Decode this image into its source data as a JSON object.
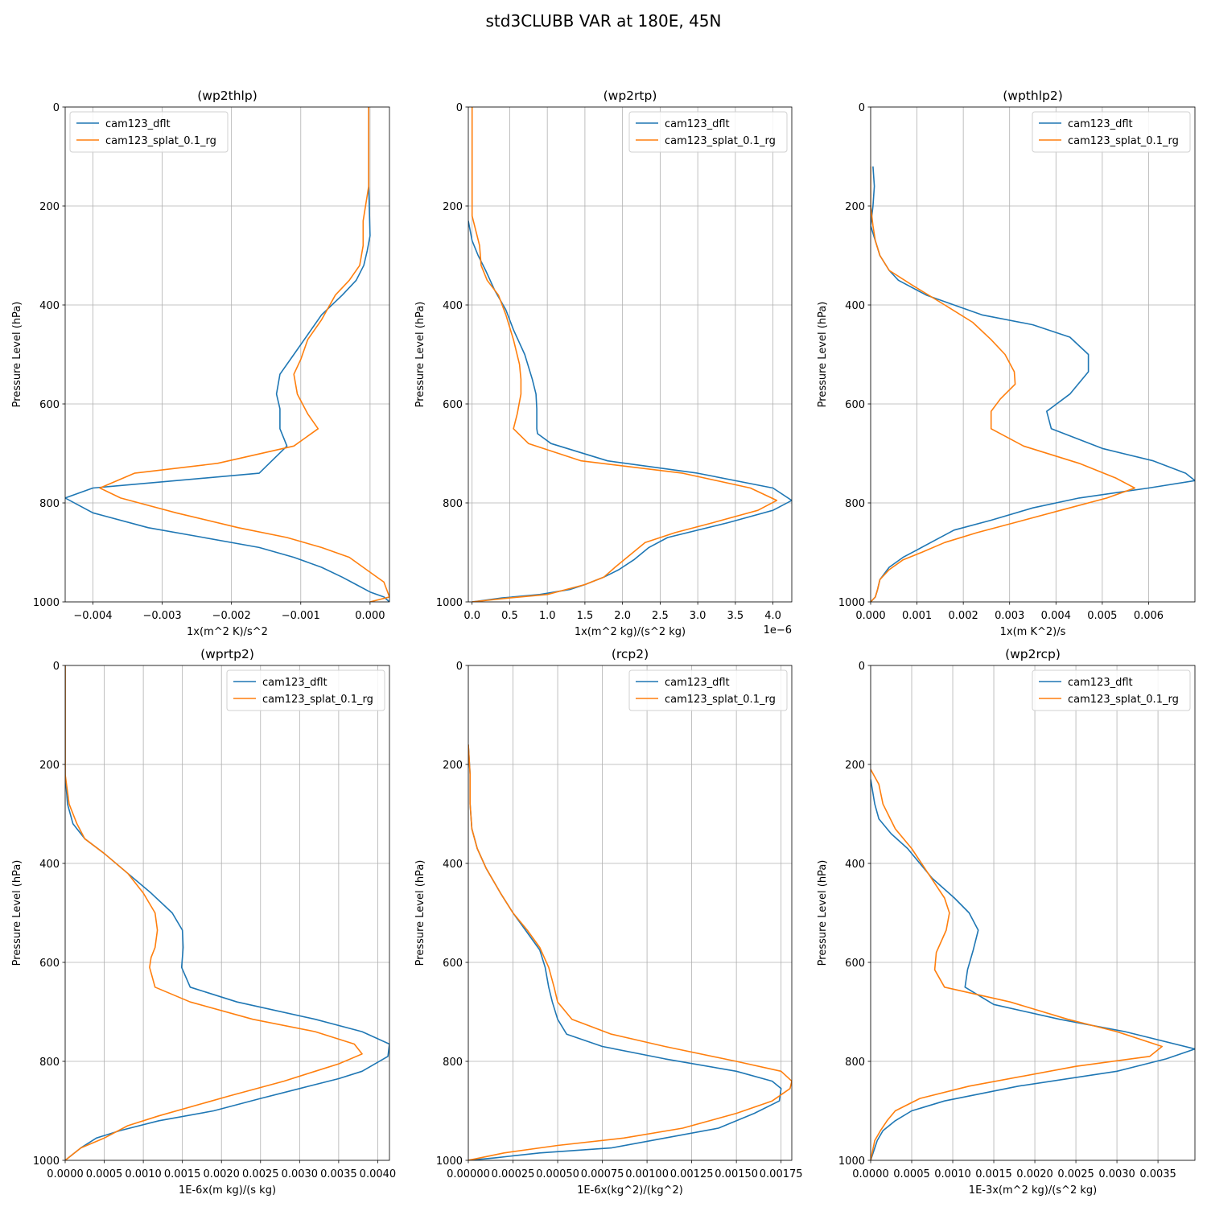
{
  "suptitle": "std3CLUBB VAR at 180E, 45N",
  "colors": {
    "cam123_dflt": "#1f77b4",
    "cam123_splat_0.1_rg": "#ff7f0e"
  },
  "chart_data": [
    {
      "type": "line",
      "title": "(wp2thlp)",
      "xlabel": "1x(m^2 K)/s^2",
      "ylabel": "Pressure Level (hPa)",
      "xlim": [
        -0.0044,
        0.00028
      ],
      "ylim": [
        1000,
        0
      ],
      "offset_text": "",
      "xticks": [
        -0.004,
        -0.003,
        -0.002,
        -0.001,
        0.0
      ],
      "xtick_labels": [
        "−0.004",
        "−0.003",
        "−0.002",
        "−0.001",
        "0.000"
      ],
      "yticks": [
        0,
        200,
        400,
        600,
        800,
        1000
      ],
      "ytick_labels": [
        "0",
        "200",
        "400",
        "600",
        "800",
        "1000"
      ],
      "legend_loc": "upper-left",
      "grid": true,
      "series": [
        {
          "name": "cam123_dflt",
          "x": [
            -2e-05,
            -2e-05,
            -2e-05,
            -2e-05,
            0.0,
            -4e-05,
            -9e-05,
            -0.0002,
            -0.0004,
            -0.0007,
            -0.0009,
            -0.0011,
            -0.0013,
            -0.00135,
            -0.0013,
            -0.0013,
            -0.0012,
            -0.0016,
            -0.004,
            -0.0044,
            -0.004,
            -0.0032,
            -0.0024,
            -0.0016,
            -0.0011,
            -0.0007,
            -0.0004,
            -0.0002,
            0.0,
            0.0002,
            0.00028
          ],
          "y": [
            0,
            60,
            120,
            160,
            260,
            290,
            320,
            350,
            380,
            420,
            460,
            500,
            540,
            580,
            610,
            650,
            685,
            740,
            770,
            790,
            820,
            850,
            870,
            890,
            910,
            930,
            950,
            965,
            980,
            990,
            1000
          ]
        },
        {
          "name": "cam123_splat_0.1_rg",
          "x": [
            -2e-05,
            -2e-05,
            -2e-05,
            -2e-05,
            -0.0001,
            -0.0001,
            -0.00015,
            -0.0003,
            -0.0005,
            -0.0007,
            -0.0009,
            -0.001,
            -0.0011,
            -0.00105,
            -0.0009,
            -0.00075,
            -0.0011,
            -0.0022,
            -0.0034,
            -0.0039,
            -0.0036,
            -0.0028,
            -0.0019,
            -0.0012,
            -0.0007,
            -0.0003,
            0.0,
            0.0002,
            0.00028,
            0.0
          ],
          "y": [
            0,
            60,
            120,
            160,
            230,
            280,
            320,
            350,
            380,
            430,
            470,
            510,
            540,
            580,
            620,
            650,
            685,
            720,
            740,
            770,
            790,
            820,
            850,
            870,
            890,
            910,
            940,
            960,
            990,
            1000
          ]
        }
      ]
    },
    {
      "type": "line",
      "title": "(wp2rtp)",
      "xlabel": "1x(m^2 kg)/(s^2 kg)",
      "ylabel": "Pressure Level (hPa)",
      "xlim": [
        -0.05,
        4.25
      ],
      "ylim": [
        1000,
        0
      ],
      "offset_text": "1e−6",
      "xticks": [
        0.0,
        0.5,
        1.0,
        1.5,
        2.0,
        2.5,
        3.0,
        3.5,
        4.0
      ],
      "xtick_labels": [
        "0.0",
        "0.5",
        "1.0",
        "1.5",
        "2.0",
        "2.5",
        "3.0",
        "3.5",
        "4.0"
      ],
      "yticks": [
        0,
        200,
        400,
        600,
        800,
        1000
      ],
      "ytick_labels": [
        "0",
        "200",
        "400",
        "600",
        "800",
        "1000"
      ],
      "legend_loc": "upper-right",
      "grid": true,
      "series": [
        {
          "name": "cam123_dflt",
          "x": [
            -0.05,
            0.0,
            0.08,
            0.18,
            0.3,
            0.45,
            0.55,
            0.7,
            0.8,
            0.85,
            0.86,
            0.86,
            0.87,
            1.05,
            1.8,
            3.0,
            4.0,
            4.25,
            4.0,
            3.4,
            2.6,
            2.35,
            2.15,
            1.95,
            1.75,
            1.5,
            1.3,
            0.9,
            0.4,
            0.0
          ],
          "y": [
            230,
            270,
            300,
            330,
            370,
            410,
            450,
            500,
            550,
            580,
            610,
            650,
            660,
            680,
            715,
            740,
            770,
            795,
            815,
            840,
            870,
            890,
            915,
            935,
            950,
            965,
            975,
            985,
            992,
            1000
          ]
        },
        {
          "name": "cam123_splat_0.1_rg",
          "x": [
            0.0,
            0.0,
            0.0,
            0.0,
            0.0,
            0.1,
            0.12,
            0.2,
            0.35,
            0.45,
            0.55,
            0.63,
            0.65,
            0.65,
            0.6,
            0.55,
            0.75,
            1.45,
            2.8,
            3.7,
            4.05,
            3.8,
            3.2,
            2.7,
            2.3,
            2.1,
            1.9,
            1.75,
            1.5,
            1.25,
            1.0,
            0.5,
            0.0
          ],
          "y": [
            0,
            60,
            120,
            170,
            220,
            280,
            320,
            350,
            380,
            420,
            470,
            520,
            550,
            580,
            620,
            650,
            680,
            715,
            740,
            770,
            795,
            815,
            840,
            860,
            880,
            905,
            930,
            950,
            965,
            975,
            985,
            992,
            1000
          ]
        }
      ]
    },
    {
      "type": "line",
      "title": "(wpthlp2)",
      "xlabel": "1x(m K^2)/s",
      "ylabel": "Pressure Level (hPa)",
      "xlim": [
        0.0,
        0.007
      ],
      "ylim": [
        1000,
        0
      ],
      "offset_text": "",
      "xticks": [
        0.0,
        0.001,
        0.002,
        0.003,
        0.004,
        0.005,
        0.006
      ],
      "xtick_labels": [
        "0.000",
        "0.001",
        "0.002",
        "0.003",
        "0.004",
        "0.005",
        "0.006"
      ],
      "yticks": [
        0,
        200,
        400,
        600,
        800,
        1000
      ],
      "ytick_labels": [
        "0",
        "200",
        "400",
        "600",
        "800",
        "1000"
      ],
      "legend_loc": "upper-right",
      "grid": true,
      "series": [
        {
          "name": "cam123_dflt",
          "x": [
            5e-05,
            8e-05,
            5e-05,
            0.0,
            0.0001,
            0.0002,
            0.0004,
            0.0006,
            0.0012,
            0.0018,
            0.0024,
            0.0035,
            0.0043,
            0.0047,
            0.0047,
            0.0043,
            0.0038,
            0.0039,
            0.005,
            0.0061,
            0.0068,
            0.007,
            0.006,
            0.0045,
            0.0035,
            0.0026,
            0.0018,
            0.0014,
            0.001,
            0.0007,
            0.0004,
            0.0002,
            0.00015,
            0.0001,
            0.0
          ],
          "y": [
            120,
            160,
            200,
            240,
            270,
            300,
            330,
            350,
            380,
            400,
            420,
            440,
            465,
            500,
            535,
            580,
            615,
            650,
            690,
            715,
            740,
            755,
            770,
            790,
            810,
            835,
            855,
            875,
            895,
            910,
            930,
            955,
            975,
            990,
            1000
          ]
        },
        {
          "name": "cam123_splat_0.1_rg",
          "x": [
            0.0,
            0.0,
            5e-05,
            0.0001,
            0.0002,
            0.0004,
            0.0009,
            0.0016,
            0.0022,
            0.0026,
            0.0029,
            0.0031,
            0.00312,
            0.0028,
            0.0026,
            0.0026,
            0.0033,
            0.0045,
            0.0053,
            0.0057,
            0.0051,
            0.0041,
            0.0031,
            0.0023,
            0.0016,
            0.0011,
            0.0007,
            0.0004,
            0.0002,
            0.00015,
            0.0001,
            0.0
          ],
          "y": [
            120,
            200,
            240,
            270,
            300,
            330,
            360,
            400,
            435,
            470,
            500,
            535,
            560,
            590,
            615,
            650,
            685,
            720,
            750,
            770,
            790,
            815,
            840,
            860,
            880,
            900,
            915,
            935,
            955,
            975,
            990,
            1000
          ]
        }
      ]
    },
    {
      "type": "line",
      "title": "(wprtp2)",
      "xlabel": "1E-6x(m kg)/(s kg)",
      "ylabel": "Pressure Level (hPa)",
      "xlim": [
        0.0,
        0.00415
      ],
      "ylim": [
        1000,
        0
      ],
      "offset_text": "",
      "xticks": [
        0.0,
        0.0005,
        0.001,
        0.0015,
        0.002,
        0.0025,
        0.003,
        0.0035,
        0.004
      ],
      "xtick_labels": [
        "0.0000",
        "0.0005",
        "0.0010",
        "0.0015",
        "0.0020",
        "0.0025",
        "0.0030",
        "0.0035",
        "0.0040"
      ],
      "yticks": [
        0,
        200,
        400,
        600,
        800,
        1000
      ],
      "ytick_labels": [
        "0",
        "200",
        "400",
        "600",
        "800",
        "1000"
      ],
      "legend_loc": "upper-right",
      "grid": true,
      "series": [
        {
          "name": "cam123_dflt",
          "x": [
            0.0,
            0.0,
            0.0,
            3e-05,
            0.0001,
            0.00025,
            0.0005,
            0.0008,
            0.0011,
            0.00137,
            0.0015,
            0.00151,
            0.0015,
            0.00149,
            0.0016,
            0.0022,
            0.0032,
            0.0038,
            0.00415,
            0.00413,
            0.0038,
            0.0035,
            0.003,
            0.0025,
            0.0019,
            0.0012,
            0.0007,
            0.0004,
            0.0002,
            0.0
          ],
          "y": [
            0,
            120,
            220,
            280,
            320,
            350,
            380,
            420,
            460,
            500,
            535,
            570,
            590,
            610,
            650,
            680,
            715,
            740,
            765,
            790,
            820,
            835,
            855,
            875,
            900,
            920,
            940,
            955,
            975,
            1000
          ]
        },
        {
          "name": "cam123_splat_0.1_rg",
          "x": [
            0.0,
            0.0,
            0.0,
            5e-05,
            0.00015,
            0.00025,
            0.0005,
            0.0008,
            0.001,
            0.00115,
            0.00118,
            0.00115,
            0.0011,
            0.00108,
            0.00115,
            0.0016,
            0.0024,
            0.0032,
            0.0037,
            0.0038,
            0.0035,
            0.0032,
            0.0028,
            0.0021,
            0.0012,
            0.0008,
            0.0005,
            0.0002,
            0.0
          ],
          "y": [
            0,
            120,
            220,
            280,
            320,
            350,
            380,
            420,
            460,
            500,
            535,
            570,
            590,
            610,
            650,
            680,
            715,
            740,
            765,
            785,
            805,
            820,
            840,
            870,
            910,
            930,
            955,
            975,
            1000
          ]
        }
      ]
    },
    {
      "type": "line",
      "title": "(rcp2)",
      "xlabel": "1E-6x(kg^2)/(kg^2)",
      "ylabel": "Pressure Level (hPa)",
      "xlim": [
        0.0,
        0.00181
      ],
      "ylim": [
        1000,
        0
      ],
      "offset_text": "",
      "xticks": [
        0.0,
        0.00025,
        0.0005,
        0.00075,
        0.001,
        0.00125,
        0.0015,
        0.00175
      ],
      "xtick_labels": [
        "0.00000",
        "0.00025",
        "0.00050",
        "0.00075",
        "0.00100",
        "0.00125",
        "0.00150",
        "0.00175"
      ],
      "yticks": [
        0,
        200,
        400,
        600,
        800,
        1000
      ],
      "ytick_labels": [
        "0",
        "200",
        "400",
        "600",
        "800",
        "1000"
      ],
      "legend_loc": "upper-right",
      "grid": true,
      "series": [
        {
          "name": "cam123_dflt",
          "x": [
            0.0,
            1e-05,
            1e-05,
            2e-05,
            5e-05,
            0.0001,
            0.00018,
            0.00025,
            0.00032,
            0.0004,
            0.00043,
            0.00045,
            0.00047,
            0.0005,
            0.00055,
            0.00075,
            0.0011,
            0.0015,
            0.0017,
            0.00175,
            0.00174,
            0.0016,
            0.0014,
            0.0011,
            0.0008,
            0.0004,
            0.00015,
            0.0
          ],
          "y": [
            160,
            220,
            280,
            330,
            370,
            410,
            460,
            500,
            535,
            575,
            610,
            650,
            680,
            715,
            745,
            770,
            795,
            820,
            840,
            855,
            880,
            905,
            935,
            955,
            975,
            985,
            995,
            1000
          ]
        },
        {
          "name": "cam123_splat_0.1_rg",
          "x": [
            0.0,
            1e-05,
            1e-05,
            2e-05,
            5e-05,
            0.0001,
            0.00018,
            0.00025,
            0.00033,
            0.0004,
            0.00045,
            0.00048,
            0.0005,
            0.00058,
            0.0008,
            0.0011,
            0.0015,
            0.00175,
            0.00181,
            0.0018,
            0.0017,
            0.0015,
            0.0012,
            0.00087,
            0.0005,
            0.0002,
            0.0
          ],
          "y": [
            160,
            220,
            280,
            330,
            370,
            410,
            460,
            500,
            535,
            570,
            610,
            650,
            680,
            715,
            745,
            770,
            800,
            820,
            840,
            855,
            880,
            905,
            935,
            955,
            970,
            985,
            1000
          ]
        }
      ]
    },
    {
      "type": "line",
      "title": "(wp2rcp)",
      "xlabel": "1E-3x(m^2 kg)/(s^2 kg)",
      "ylabel": "Pressure Level (hPa)",
      "xlim": [
        0.0,
        0.00395
      ],
      "ylim": [
        1000,
        0
      ],
      "offset_text": "",
      "xticks": [
        0.0,
        0.0005,
        0.001,
        0.0015,
        0.002,
        0.0025,
        0.003,
        0.0035
      ],
      "xtick_labels": [
        "0.0000",
        "0.0005",
        "0.0010",
        "0.0015",
        "0.0020",
        "0.0025",
        "0.0030",
        "0.0035"
      ],
      "yticks": [
        0,
        200,
        400,
        600,
        800,
        1000
      ],
      "ytick_labels": [
        "0",
        "200",
        "400",
        "600",
        "800",
        "1000"
      ],
      "legend_loc": "upper-right",
      "grid": true,
      "series": [
        {
          "name": "cam123_dflt",
          "x": [
            0.0,
            5e-05,
            0.0001,
            0.00025,
            0.00045,
            0.00075,
            0.00102,
            0.0012,
            0.00131,
            0.00125,
            0.00118,
            0.00115,
            0.0015,
            0.0023,
            0.0031,
            0.00395,
            0.0036,
            0.003,
            0.0018,
            0.0009,
            0.0005,
            0.0003,
            0.00015,
            8e-05,
            0.0
          ],
          "y": [
            230,
            280,
            310,
            340,
            370,
            430,
            470,
            500,
            535,
            575,
            615,
            650,
            685,
            715,
            740,
            775,
            795,
            820,
            850,
            880,
            900,
            920,
            940,
            960,
            1000
          ]
        },
        {
          "name": "cam123_splat_0.1_rg",
          "x": [
            0.0,
            0.0001,
            0.00015,
            0.0003,
            0.0005,
            0.0007,
            0.0009,
            0.00096,
            0.00092,
            0.0008,
            0.00078,
            0.0009,
            0.0017,
            0.0024,
            0.003,
            0.00355,
            0.0034,
            0.0025,
            0.0012,
            0.0006,
            0.0003,
            0.0002,
            0.00012,
            5e-05,
            0.0
          ],
          "y": [
            210,
            240,
            280,
            330,
            370,
            420,
            470,
            500,
            535,
            580,
            615,
            650,
            680,
            715,
            740,
            770,
            790,
            810,
            850,
            875,
            900,
            920,
            940,
            960,
            1000
          ]
        }
      ]
    }
  ]
}
